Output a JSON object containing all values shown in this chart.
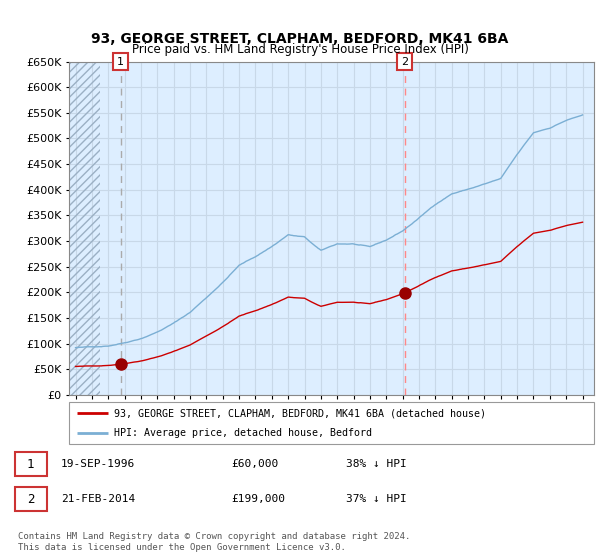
{
  "title_line1": "93, GEORGE STREET, CLAPHAM, BEDFORD, MK41 6BA",
  "title_line2": "Price paid vs. HM Land Registry's House Price Index (HPI)",
  "ylim": [
    0,
    650000
  ],
  "sale1_date": "19-SEP-1996",
  "sale1_price": 60000,
  "sale1_label": "38% ↓ HPI",
  "sale1_year": 1996.75,
  "sale2_date": "21-FEB-2014",
  "sale2_price": 199000,
  "sale2_label": "37% ↓ HPI",
  "sale2_year": 2014.125,
  "legend_entry1": "93, GEORGE STREET, CLAPHAM, BEDFORD, MK41 6BA (detached house)",
  "legend_entry2": "HPI: Average price, detached house, Bedford",
  "footer": "Contains HM Land Registry data © Crown copyright and database right 2024.\nThis data is licensed under the Open Government Licence v3.0.",
  "line_color_sale": "#cc0000",
  "line_color_hpi": "#7bafd4",
  "dot_color": "#990000",
  "grid_color": "#c8d8e8",
  "dashed_color_sale1": "#aaaaaa",
  "dashed_color_sale2": "#ff8888",
  "bg_blue": "#ddeeff",
  "hatch_color": "#bbccdd"
}
